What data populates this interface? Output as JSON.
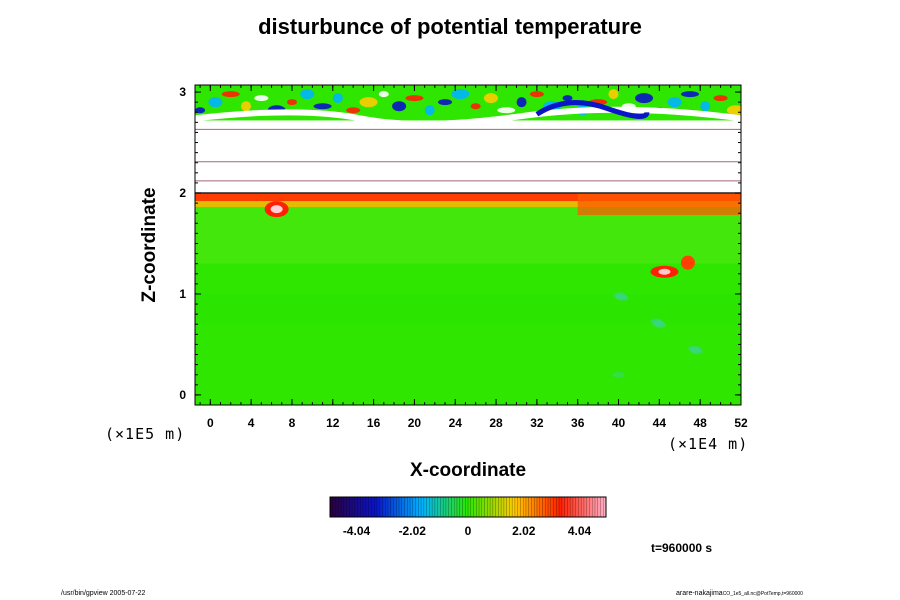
{
  "chart_data": {
    "type": "heatmap",
    "title": "disturbunce of potential temperature",
    "xlabel": "X-coordinate",
    "ylabel": "Z-coordinate",
    "x_scale_note": "(×1E4 m)",
    "y_scale_note": "(×1E5 m)",
    "xlim": [
      -1.5,
      52
    ],
    "ylim": [
      -0.1,
      3.07
    ],
    "x_ticks": [
      0,
      4,
      8,
      12,
      16,
      20,
      24,
      28,
      32,
      36,
      40,
      44,
      48,
      52
    ],
    "y_ticks": [
      0,
      1,
      2,
      3
    ],
    "colorbar": {
      "range": [
        -5,
        5
      ],
      "tick_values": [
        -4.04,
        -2.02,
        0,
        2.02,
        4.04
      ],
      "tick_labels": [
        "-4.04",
        "-2.02",
        "0",
        "2.02",
        "4.04"
      ],
      "colors": [
        "#2a003c",
        "#0a14c8",
        "#00b4ff",
        "#2ee600",
        "#ffcc00",
        "#ff2000",
        "#ffb0c8"
      ]
    },
    "field_description_regions": [
      {
        "region": "lower layer",
        "z_range": [
          0,
          2
        ],
        "value_approx": 0.3
      },
      {
        "region": "warm blob upper-left",
        "x": 6,
        "z": 1.85,
        "value_approx": 4.5
      },
      {
        "region": "warm blob right",
        "x": 45,
        "z": 1.25,
        "value_approx": 4.5
      },
      {
        "region": "undefined band",
        "z_range": [
          2.0,
          2.7
        ]
      },
      {
        "region": "top layer turbulent",
        "z_range": [
          2.7,
          3.07
        ]
      }
    ]
  },
  "time_label": "t=960000 s",
  "footer_left": "/usr/bin/gpview 2005-07-22",
  "footer_right": "arare-nakajima",
  "footer_right_small": "CO_1e5_all.nc@PotTemp,t=960000"
}
